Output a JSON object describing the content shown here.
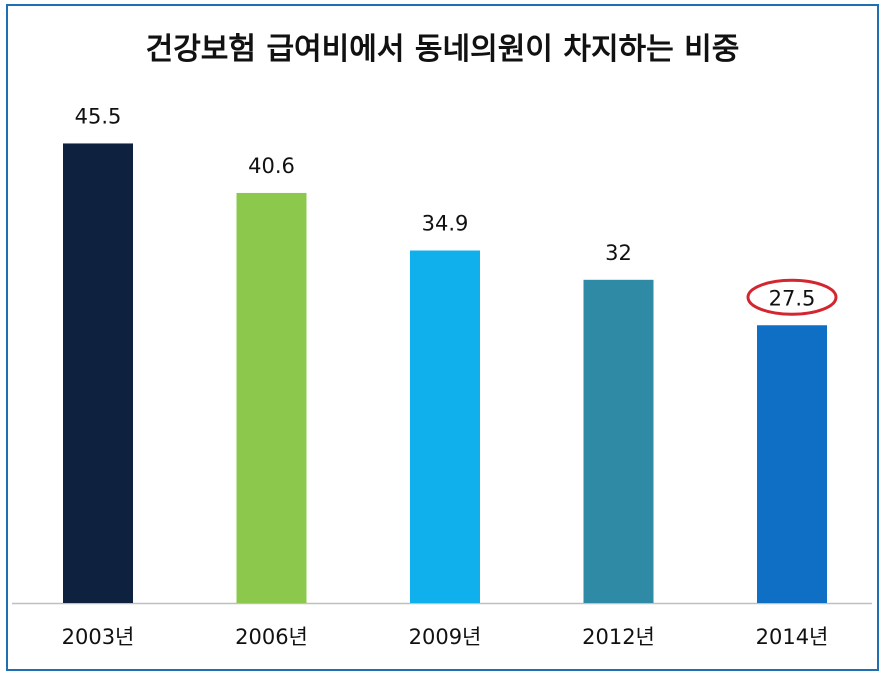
{
  "chart_data": {
    "type": "bar",
    "title": "건강보험 급여비에서 동네의원이 차지하는 비중",
    "categories": [
      "2003년",
      "2006년",
      "2009년",
      "2012년",
      "2014년"
    ],
    "values": [
      45.5,
      40.6,
      34.9,
      32,
      27.5
    ],
    "value_labels": [
      "45.5",
      "40.6",
      "34.9",
      "32",
      "27.5"
    ],
    "colors": [
      "#0e2240",
      "#8cc84b",
      "#0fb0ec",
      "#2f8aa6",
      "#0e6fc4"
    ],
    "highlight": {
      "index": 4,
      "color": "#d32630",
      "shape": "ellipse"
    },
    "ylim": [
      0,
      50
    ],
    "grid": false,
    "legend": "none",
    "xlabel": "",
    "ylabel": ""
  }
}
